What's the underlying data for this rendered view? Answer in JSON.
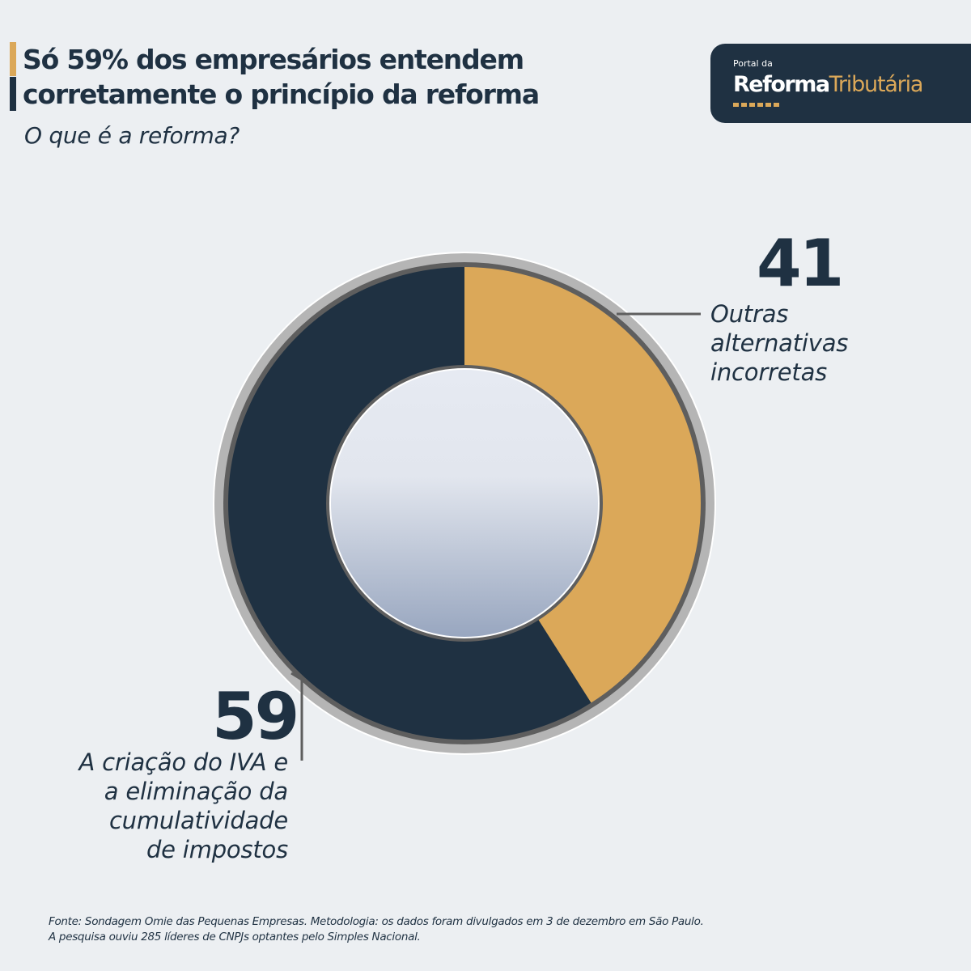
{
  "header": {
    "title_line1": "Só 59% dos empresários entendem",
    "title_line2": "corretamente o princípio da reforma",
    "subtitle": "O que é a reforma?"
  },
  "logo": {
    "small": "Portal da",
    "word1": "Reforma",
    "word2": "Tributária"
  },
  "colors": {
    "gold": "#dba859",
    "navy": "#1f3142",
    "background": "#eceff2"
  },
  "chart_data": {
    "type": "pie",
    "variant": "donut",
    "title": "O que é a reforma?",
    "unit": "%",
    "slices": [
      {
        "label": "Outras alternativas incorretas",
        "value": 41,
        "color": "#dba859"
      },
      {
        "label": "A criação do IVA e a eliminação da cumulatividade de impostos",
        "value": 59,
        "color": "#1f3142"
      }
    ],
    "labels": {
      "value_41": "41",
      "label_41": [
        "Outras",
        "alternativas",
        "incorretas"
      ],
      "value_59": "59",
      "label_59": [
        "A criação do IVA e",
        "a eliminação da",
        "cumulatividade",
        "de impostos"
      ]
    }
  },
  "footer": {
    "line1": "Fonte: Sondagem Omie das Pequenas Empresas. Metodologia: os dados foram divulgados em 3 de dezembro em São Paulo.",
    "line2": "A pesquisa ouviu 285 líderes de CNPJs optantes pelo Simples Nacional."
  }
}
